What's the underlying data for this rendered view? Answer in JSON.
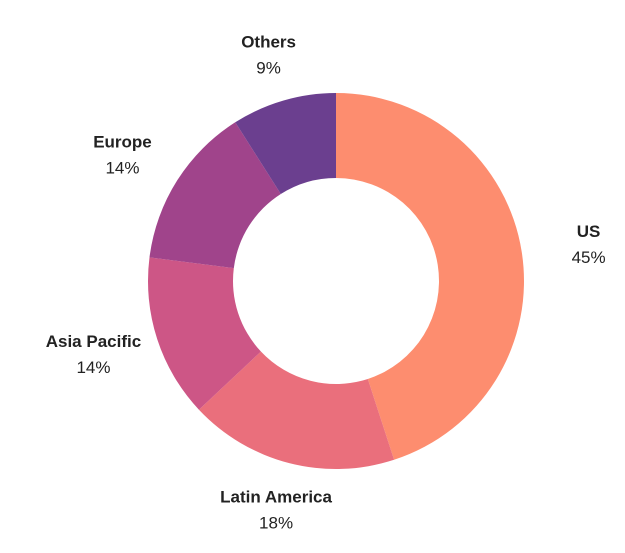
{
  "chart_data": {
    "type": "pie",
    "donut": true,
    "title": "",
    "legend": "none",
    "slices": [
      {
        "label": "US",
        "value": 45,
        "value_label": "45%",
        "color": "#fd8d6f"
      },
      {
        "label": "Latin America",
        "value": 18,
        "value_label": "18%",
        "color": "#ea6f7c"
      },
      {
        "label": "Asia Pacific",
        "value": 14,
        "value_label": "14%",
        "color": "#cd5686"
      },
      {
        "label": "Europe",
        "value": 14,
        "value_label": "14%",
        "color": "#a0448b"
      },
      {
        "label": "Others",
        "value": 9,
        "value_label": "9%",
        "color": "#6b3f8f"
      }
    ]
  }
}
